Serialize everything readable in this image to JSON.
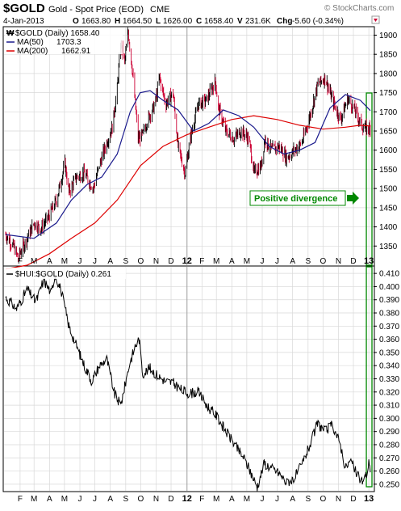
{
  "header": {
    "symbol": "$GOLD",
    "name": "Gold - Spot Price (EOD)",
    "exchange": "CME",
    "watermark": "© StockCharts.com",
    "date": "4-Jan-2013",
    "quote": {
      "open_label": "O",
      "open": "1663.80",
      "high_label": "H",
      "high": "1664.50",
      "low_label": "L",
      "low": "1626.00",
      "close_label": "C",
      "close": "1658.40",
      "volume_label": "V",
      "volume": "231.6K",
      "change_label": "Chg",
      "change": "-5.60 (-0.34%)"
    }
  },
  "colors": {
    "price_up": "#000000",
    "price_down": "#cc0033",
    "ma50": "#1a1a8c",
    "ma200": "#dd0000",
    "divergence": "#008800",
    "grid": "#d8d8d8",
    "year_line": "#a0a0a0"
  },
  "chart_data": [
    {
      "type": "line",
      "title": "$GOLD (Daily) 1658.40",
      "series": [
        {
          "name": "$GOLD (Daily)",
          "last": 1658.4,
          "x": [
            "2012-01",
            "2012-02",
            "2012-03",
            "2012-04",
            "2012-05",
            "2012-06",
            "2012-07",
            "2012-08",
            "2012-09",
            "2012-10",
            "2012-11",
            "2012-12",
            "2013-01",
            "2011-01",
            "2011-02",
            "2011-03",
            "2011-04",
            "2011-05",
            "2011-06",
            "2011-07",
            "2011-08",
            "2011-09",
            "2011-10",
            "2011-11",
            "2011-12"
          ],
          "points": [
            [
              "2011-01-03",
              1380
            ],
            [
              "2011-01-20",
              1345
            ],
            [
              "2011-01-28",
              1320
            ],
            [
              "2011-02-15",
              1370
            ],
            [
              "2011-03-01",
              1410
            ],
            [
              "2011-03-15",
              1395
            ],
            [
              "2011-04-01",
              1430
            ],
            [
              "2011-04-15",
              1470
            ],
            [
              "2011-05-02",
              1565
            ],
            [
              "2011-05-10",
              1490
            ],
            [
              "2011-05-25",
              1530
            ],
            [
              "2011-06-10",
              1540
            ],
            [
              "2011-06-28",
              1500
            ],
            [
              "2011-07-10",
              1560
            ],
            [
              "2011-07-25",
              1620
            ],
            [
              "2011-08-05",
              1660
            ],
            [
              "2011-08-15",
              1760
            ],
            [
              "2011-08-22",
              1880
            ],
            [
              "2011-08-30",
              1830
            ],
            [
              "2011-09-06",
              1910
            ],
            [
              "2011-09-15",
              1800
            ],
            [
              "2011-09-26",
              1630
            ],
            [
              "2011-10-05",
              1640
            ],
            [
              "2011-10-15",
              1680
            ],
            [
              "2011-10-30",
              1720
            ],
            [
              "2011-11-08",
              1790
            ],
            [
              "2011-11-20",
              1720
            ],
            [
              "2011-12-05",
              1750
            ],
            [
              "2011-12-15",
              1610
            ],
            [
              "2011-12-29",
              1540
            ],
            [
              "2012-01-10",
              1640
            ],
            [
              "2012-01-25",
              1720
            ],
            [
              "2012-02-10",
              1730
            ],
            [
              "2012-02-28",
              1780
            ],
            [
              "2012-03-05",
              1710
            ],
            [
              "2012-03-20",
              1650
            ],
            [
              "2012-04-05",
              1630
            ],
            [
              "2012-04-20",
              1650
            ],
            [
              "2012-05-05",
              1630
            ],
            [
              "2012-05-16",
              1540
            ],
            [
              "2012-05-30",
              1560
            ],
            [
              "2012-06-06",
              1630
            ],
            [
              "2012-06-20",
              1600
            ],
            [
              "2012-07-05",
              1610
            ],
            [
              "2012-07-20",
              1580
            ],
            [
              "2012-08-05",
              1600
            ],
            [
              "2012-08-20",
              1620
            ],
            [
              "2012-09-05",
              1690
            ],
            [
              "2012-09-20",
              1770
            ],
            [
              "2012-10-05",
              1790
            ],
            [
              "2012-10-20",
              1730
            ],
            [
              "2012-11-05",
              1680
            ],
            [
              "2012-11-20",
              1735
            ],
            [
              "2012-12-05",
              1700
            ],
            [
              "2012-12-20",
              1660
            ],
            [
              "2012-12-28",
              1655
            ],
            [
              "2013-01-04",
              1658.4
            ]
          ]
        },
        {
          "name": "MA(50)",
          "last": 1703.3,
          "points": [
            [
              "2011-01-03",
              1380
            ],
            [
              "2011-03-01",
              1370
            ],
            [
              "2011-04-15",
              1410
            ],
            [
              "2011-05-15",
              1470
            ],
            [
              "2011-06-15",
              1510
            ],
            [
              "2011-07-15",
              1530
            ],
            [
              "2011-08-15",
              1590
            ],
            [
              "2011-09-10",
              1700
            ],
            [
              "2011-09-30",
              1750
            ],
            [
              "2011-10-20",
              1755
            ],
            [
              "2011-11-15",
              1730
            ],
            [
              "2011-12-15",
              1705
            ],
            [
              "2012-01-15",
              1650
            ],
            [
              "2012-02-15",
              1670
            ],
            [
              "2012-03-15",
              1705
            ],
            [
              "2012-04-15",
              1690
            ],
            [
              "2012-05-15",
              1660
            ],
            [
              "2012-06-15",
              1610
            ],
            [
              "2012-07-15",
              1590
            ],
            [
              "2012-08-15",
              1600
            ],
            [
              "2012-09-15",
              1620
            ],
            [
              "2012-10-15",
              1710
            ],
            [
              "2012-11-15",
              1745
            ],
            [
              "2012-12-15",
              1730
            ],
            [
              "2013-01-04",
              1703.3
            ]
          ]
        },
        {
          "name": "MA(200)",
          "last": 1662.91,
          "points": [
            [
              "2011-01-03",
              1290
            ],
            [
              "2011-02-15",
              1300
            ],
            [
              "2011-04-01",
              1330
            ],
            [
              "2011-05-15",
              1370
            ],
            [
              "2011-07-01",
              1410
            ],
            [
              "2011-08-15",
              1470
            ],
            [
              "2011-10-01",
              1560
            ],
            [
              "2011-11-15",
              1610
            ],
            [
              "2012-01-01",
              1640
            ],
            [
              "2012-02-15",
              1660
            ],
            [
              "2012-04-01",
              1680
            ],
            [
              "2012-05-15",
              1690
            ],
            [
              "2012-07-01",
              1680
            ],
            [
              "2012-08-15",
              1665
            ],
            [
              "2012-10-01",
              1655
            ],
            [
              "2012-11-15",
              1660
            ],
            [
              "2012-12-15",
              1665
            ],
            [
              "2013-01-04",
              1662.91
            ]
          ]
        }
      ],
      "ylim": [
        1300,
        1920
      ],
      "yticks": [
        1350,
        1400,
        1450,
        1500,
        1550,
        1600,
        1650,
        1700,
        1750,
        1800,
        1850,
        1900
      ],
      "annotation": "Positive divergence"
    },
    {
      "type": "line",
      "title": "$HUI:$GOLD (Daily) 0.261",
      "series": [
        {
          "name": "$HUI:$GOLD (Daily)",
          "last": 0.261,
          "points": [
            [
              "2011-01-03",
              0.392
            ],
            [
              "2011-01-25",
              0.383
            ],
            [
              "2011-02-15",
              0.398
            ],
            [
              "2011-03-05",
              0.388
            ],
            [
              "2011-03-20",
              0.405
            ],
            [
              "2011-04-05",
              0.395
            ],
            [
              "2011-04-12",
              0.41
            ],
            [
              "2011-04-25",
              0.396
            ],
            [
              "2011-05-10",
              0.37
            ],
            [
              "2011-05-25",
              0.355
            ],
            [
              "2011-06-10",
              0.34
            ],
            [
              "2011-06-25",
              0.328
            ],
            [
              "2011-07-10",
              0.34
            ],
            [
              "2011-07-25",
              0.345
            ],
            [
              "2011-08-10",
              0.318
            ],
            [
              "2011-08-22",
              0.31
            ],
            [
              "2011-09-08",
              0.34
            ],
            [
              "2011-09-20",
              0.355
            ],
            [
              "2011-09-28",
              0.36
            ],
            [
              "2011-10-05",
              0.334
            ],
            [
              "2011-10-20",
              0.338
            ],
            [
              "2011-11-05",
              0.332
            ],
            [
              "2011-11-20",
              0.328
            ],
            [
              "2011-12-05",
              0.327
            ],
            [
              "2011-12-20",
              0.322
            ],
            [
              "2012-01-05",
              0.319
            ],
            [
              "2012-01-25",
              0.32
            ],
            [
              "2012-02-10",
              0.31
            ],
            [
              "2012-03-01",
              0.302
            ],
            [
              "2012-03-20",
              0.29
            ],
            [
              "2012-04-10",
              0.278
            ],
            [
              "2012-04-25",
              0.27
            ],
            [
              "2012-05-10",
              0.258
            ],
            [
              "2012-05-22",
              0.248
            ],
            [
              "2012-06-05",
              0.266
            ],
            [
              "2012-06-20",
              0.262
            ],
            [
              "2012-07-05",
              0.258
            ],
            [
              "2012-07-20",
              0.251
            ],
            [
              "2012-08-05",
              0.255
            ],
            [
              "2012-08-20",
              0.265
            ],
            [
              "2012-09-05",
              0.28
            ],
            [
              "2012-09-20",
              0.296
            ],
            [
              "2012-10-05",
              0.29
            ],
            [
              "2012-10-20",
              0.295
            ],
            [
              "2012-11-05",
              0.28
            ],
            [
              "2012-11-15",
              0.262
            ],
            [
              "2012-11-25",
              0.268
            ],
            [
              "2012-12-10",
              0.256
            ],
            [
              "2012-12-20",
              0.252
            ],
            [
              "2012-12-28",
              0.258
            ],
            [
              "2013-01-02",
              0.268
            ],
            [
              "2013-01-04",
              0.261
            ]
          ]
        }
      ],
      "ylim": [
        0.245,
        0.415
      ],
      "yticks": [
        0.25,
        0.26,
        0.27,
        0.28,
        0.29,
        0.3,
        0.31,
        0.32,
        0.33,
        0.34,
        0.35,
        0.36,
        0.37,
        0.38,
        0.39,
        0.4,
        0.41
      ]
    }
  ],
  "x_axis": {
    "labels": [
      "F",
      "M",
      "A",
      "M",
      "J",
      "J",
      "A",
      "S",
      "O",
      "N",
      "D",
      "12",
      "F",
      "M",
      "A",
      "M",
      "J",
      "J",
      "A",
      "S",
      "O",
      "N",
      "D",
      "13"
    ],
    "bold_labels": [
      "12",
      "13"
    ],
    "start": "2011-01-03",
    "end": "2013-01-04",
    "year_line_dates": [
      "2012-01-02"
    ]
  }
}
